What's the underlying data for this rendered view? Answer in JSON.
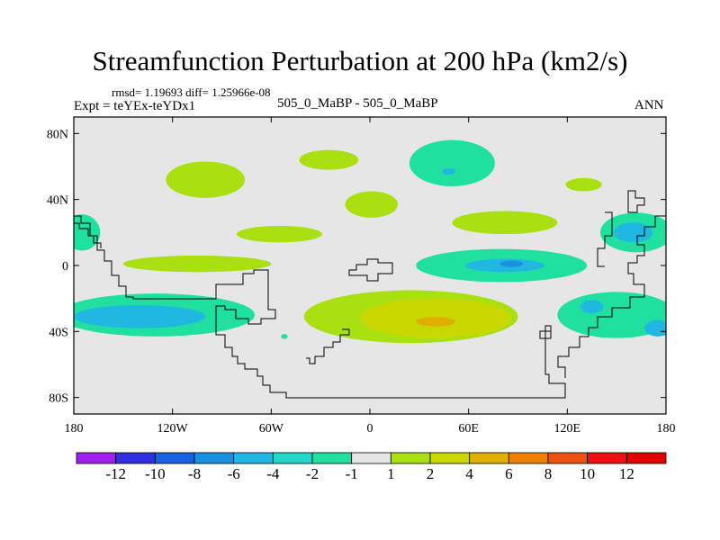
{
  "header": {
    "title": "Streamfunction Perturbation at 200 hPa (km2/s)",
    "rmsd_text": "rmsd= 1.19693 diff= 1.25966e-08",
    "expt_text": "Expt = teYEx-teYDx1",
    "cases_text": "505_0_MaBP - 505_0_MaBP",
    "season": "ANN"
  },
  "chart_data": {
    "type": "heatmap",
    "title": "Streamfunction Perturbation at 200 hPa (km2/s)",
    "projection": "cylindrical equidistant",
    "xlim": [
      -180,
      180
    ],
    "ylim": [
      -90,
      90
    ],
    "x_ticks": [
      {
        "value": -180,
        "label": "180"
      },
      {
        "value": -120,
        "label": "120W"
      },
      {
        "value": -60,
        "label": "60W"
      },
      {
        "value": 0,
        "label": "0"
      },
      {
        "value": 60,
        "label": "60E"
      },
      {
        "value": 120,
        "label": "120E"
      },
      {
        "value": 180,
        "label": "180"
      }
    ],
    "y_ticks": [
      {
        "value": 80,
        "label": "80N"
      },
      {
        "value": 40,
        "label": "40N"
      },
      {
        "value": 0,
        "label": "0"
      },
      {
        "value": -40,
        "label": "40S"
      },
      {
        "value": -80,
        "label": "80S"
      }
    ],
    "colorbar": {
      "labels": [
        "-12",
        "-10",
        "-8",
        "-6",
        "-4",
        "-2",
        "-1",
        "1",
        "2",
        "4",
        "6",
        "8",
        "10",
        "12"
      ],
      "colors": [
        "#a020f0",
        "#3030e0",
        "#1a60e0",
        "#1a90e0",
        "#20b8e0",
        "#20d8c8",
        "#20e0a0",
        "#e6e6e6",
        "#a8e010",
        "#c8d800",
        "#e0b000",
        "#f08000",
        "#f05010",
        "#f01010",
        "#e00000"
      ]
    },
    "features": [
      {
        "level_color": "#a8e010",
        "cx": -100,
        "cy": 52,
        "rx": 24,
        "ry": 11
      },
      {
        "level_color": "#a8e010",
        "cx": -25,
        "cy": 64,
        "rx": 18,
        "ry": 6
      },
      {
        "level_color": "#20e0a0",
        "cx": 50,
        "cy": 62,
        "rx": 26,
        "ry": 14
      },
      {
        "level_color": "#20b8e0",
        "cx": 48,
        "cy": 57,
        "rx": 4,
        "ry": 2
      },
      {
        "level_color": "#a8e010",
        "cx": 1,
        "cy": 37,
        "rx": 16,
        "ry": 8
      },
      {
        "level_color": "#a8e010",
        "cx": -55,
        "cy": 19,
        "rx": 26,
        "ry": 5
      },
      {
        "level_color": "#a8e010",
        "cx": 82,
        "cy": 26,
        "rx": 32,
        "ry": 7
      },
      {
        "level_color": "#a8e010",
        "cx": 130,
        "cy": 49,
        "rx": 11,
        "ry": 4
      },
      {
        "level_color": "#a8e010",
        "cx": -105,
        "cy": 1,
        "rx": 45,
        "ry": 5
      },
      {
        "level_color": "#20e0a0",
        "cx": -175,
        "cy": 20,
        "rx": 11,
        "ry": 11
      },
      {
        "level_color": "#20e0a0",
        "cx": 162,
        "cy": 20,
        "rx": 22,
        "ry": 12
      },
      {
        "level_color": "#20b8e0",
        "cx": 160,
        "cy": 20,
        "rx": 12,
        "ry": 6
      },
      {
        "level_color": "#20e0a0",
        "cx": 80,
        "cy": 0,
        "rx": 52,
        "ry": 10
      },
      {
        "level_color": "#20b8e0",
        "cx": 82,
        "cy": 0,
        "rx": 24,
        "ry": 4
      },
      {
        "level_color": "#1a90e0",
        "cx": 86,
        "cy": 1,
        "rx": 7,
        "ry": 2
      },
      {
        "level_color": "#20e0a0",
        "cx": 150,
        "cy": -30,
        "rx": 36,
        "ry": 14
      },
      {
        "level_color": "#20b8e0",
        "cx": 135,
        "cy": -25,
        "rx": 7,
        "ry": 4
      },
      {
        "level_color": "#20b8e0",
        "cx": 175,
        "cy": -38,
        "rx": 8,
        "ry": 5
      },
      {
        "level_color": "#20e0a0",
        "cx": -130,
        "cy": -30,
        "rx": 60,
        "ry": 13
      },
      {
        "level_color": "#20b8e0",
        "cx": -140,
        "cy": -31,
        "rx": 40,
        "ry": 7
      },
      {
        "level_color": "#a8e010",
        "cx": 25,
        "cy": -31,
        "rx": 65,
        "ry": 16
      },
      {
        "level_color": "#c8d800",
        "cx": 40,
        "cy": -32,
        "rx": 46,
        "ry": 12
      },
      {
        "level_color": "#e0b000",
        "cx": 40,
        "cy": -34,
        "rx": 12,
        "ry": 3
      },
      {
        "level_color": "#20e0a0",
        "cx": -52,
        "cy": -43,
        "rx": 2,
        "ry": 1.5
      }
    ]
  }
}
